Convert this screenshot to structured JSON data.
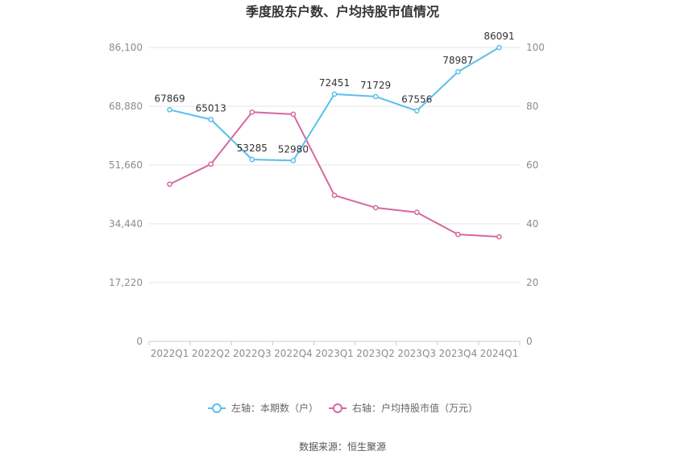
{
  "chart_data": {
    "type": "line",
    "title": "季度股东户数、户均持股市值情况",
    "categories": [
      "2022Q1",
      "2022Q2",
      "2022Q3",
      "2022Q4",
      "2023Q1",
      "2023Q2",
      "2023Q3",
      "2023Q4",
      "2024Q1"
    ],
    "left_axis": {
      "ylim": [
        0,
        86100
      ],
      "ticks": [
        "0",
        "17,220",
        "34,440",
        "51,660",
        "68,880",
        "86,100"
      ],
      "tick_values": [
        0,
        17220,
        34440,
        51660,
        68880,
        86100
      ]
    },
    "right_axis": {
      "ylim": [
        0,
        100
      ],
      "ticks": [
        "0",
        "20",
        "40",
        "60",
        "80",
        "100"
      ],
      "tick_values": [
        0,
        20,
        40,
        60,
        80,
        100
      ]
    },
    "series": [
      {
        "name": "左轴：本期数（户）",
        "axis": "left",
        "color": "#5bbfea",
        "values": [
          67869,
          65013,
          53285,
          52980,
          72451,
          71729,
          67556,
          78987,
          86091
        ],
        "labels": [
          "67869",
          "65013",
          "53285",
          "52980",
          "72451",
          "71729",
          "67556",
          "78987",
          "86091"
        ]
      },
      {
        "name": "右轴：户均持股市值（万元）",
        "axis": "right",
        "color": "#d5679f",
        "values": [
          53.5,
          60.3,
          78.0,
          77.3,
          49.7,
          45.5,
          43.9,
          36.4,
          35.6
        ]
      }
    ],
    "grid": true,
    "legend_position": "bottom-center",
    "source": "数据来源：恒生聚源"
  }
}
